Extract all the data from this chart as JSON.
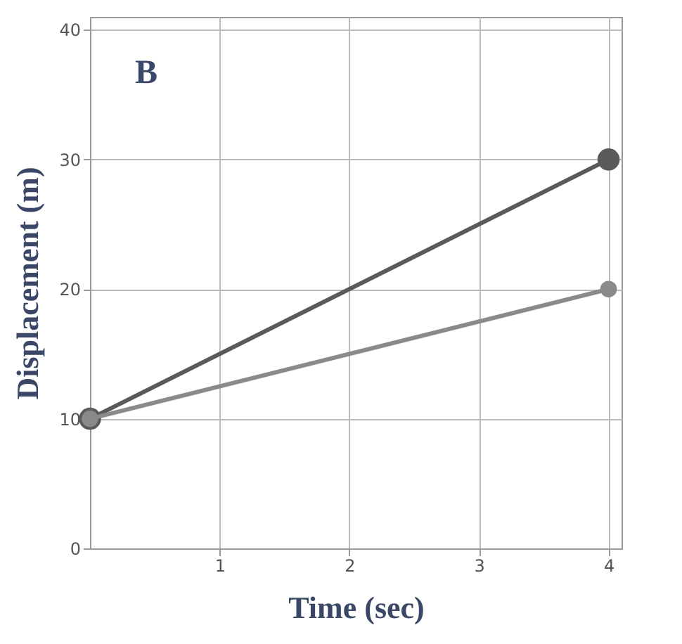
{
  "chart_data": {
    "type": "line",
    "xlabel": "Time (sec)",
    "ylabel": "Displacement (m)",
    "annotations": [
      "B"
    ],
    "x": [
      0,
      4
    ],
    "series": [
      {
        "color": "#5a5a5a",
        "values": [
          10,
          30
        ]
      },
      {
        "color": "#8a8a8a",
        "values": [
          10,
          20
        ]
      }
    ],
    "xlim": [
      0,
      4.1
    ],
    "ylim": [
      0,
      41
    ],
    "xticks": [
      1,
      2,
      3,
      4
    ],
    "yticks": [
      0,
      10,
      20,
      30,
      40
    ],
    "grid": true,
    "marker": "circle",
    "line_style": "solid"
  }
}
